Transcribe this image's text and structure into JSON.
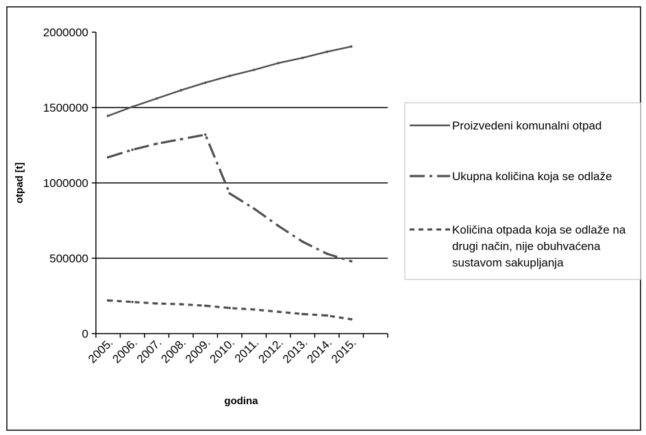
{
  "chart_data": {
    "type": "line",
    "title": "",
    "xlabel": "godina",
    "ylabel": "otpad [t]",
    "categories": [
      "2005.",
      "2006.",
      "2007.",
      "2008.",
      "2009.",
      "2010.",
      "2011.",
      "2012.",
      "2013.",
      "2014.",
      "2015."
    ],
    "yticks": [
      "0",
      "500000",
      "1000000",
      "1500000",
      "2000000"
    ],
    "ylim": [
      0,
      2000000
    ],
    "grid": "horizontal major lines at 500000, 1000000, 1500000",
    "legend_position": "right",
    "colors": {
      "series_1": "#505050",
      "series_2": "#505050",
      "series_3": "#505050",
      "grid": "#000000",
      "border": "#000000"
    },
    "series": [
      {
        "name": "Proizvedeni komunalni otpad",
        "style": "solid",
        "values": [
          1445000,
          1505000,
          1560000,
          1615000,
          1665000,
          1710000,
          1750000,
          1795000,
          1830000,
          1870000,
          1905000
        ]
      },
      {
        "name": "Ukupna količina koja se odlaže",
        "style": "dash-dot",
        "values": [
          1170000,
          1220000,
          1260000,
          1290000,
          1320000,
          930000,
          830000,
          715000,
          610000,
          530000,
          480000
        ]
      },
      {
        "name": "Količina otpada koja se odlaže na drugi način, nije obuhvaćena sustavom sakupljanja",
        "style": "dotted",
        "legend_lines": [
          "Količina otpada koja se odlaže na",
          "drugi način, nije obuhvaćena",
          "sustavom sakupljanja"
        ],
        "values": [
          220000,
          210000,
          200000,
          195000,
          185000,
          170000,
          160000,
          145000,
          130000,
          120000,
          95000
        ]
      }
    ]
  }
}
